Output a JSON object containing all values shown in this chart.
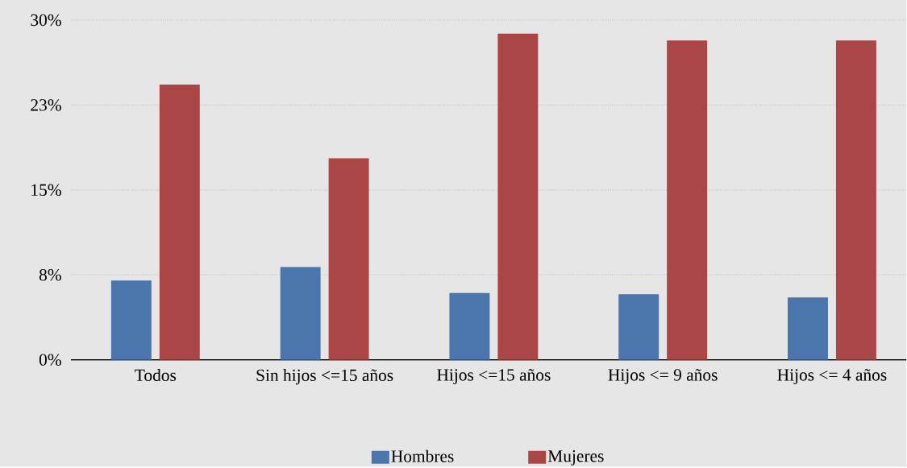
{
  "chart_data": {
    "type": "bar",
    "categories": [
      "Todos",
      "Sin hijos <=15 años",
      "Hijos <=15 años",
      "Hijos <= 9 años",
      "Hijos <= 4 años"
    ],
    "series": [
      {
        "name": "Hombres",
        "color": "#4a76ad",
        "values": [
          7.0,
          8.2,
          5.9,
          5.8,
          5.5
        ]
      },
      {
        "name": "Mujeres",
        "color": "#ab4646",
        "values": [
          24.3,
          17.8,
          28.8,
          28.2,
          28.2
        ]
      }
    ],
    "ylim": [
      0,
      30
    ],
    "yticks": [
      {
        "value": 0,
        "label": "0%"
      },
      {
        "value": 7.5,
        "label": "8%"
      },
      {
        "value": 15,
        "label": "15%"
      },
      {
        "value": 22.5,
        "label": "23%"
      },
      {
        "value": 30,
        "label": "30%"
      }
    ],
    "grid": "y",
    "legend": "bottom"
  }
}
